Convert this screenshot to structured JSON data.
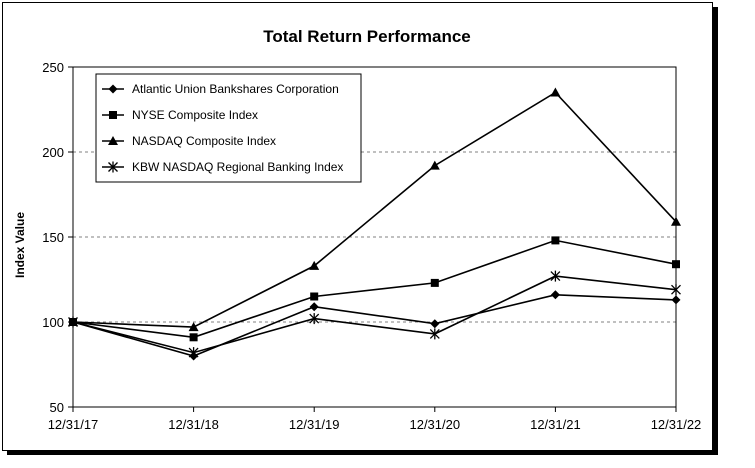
{
  "chart_data": {
    "type": "line",
    "title": "Total Return Performance",
    "xlabel": "",
    "ylabel": "Index Value",
    "categories": [
      "12/31/17",
      "12/31/18",
      "12/31/19",
      "12/31/20",
      "12/31/21",
      "12/31/22"
    ],
    "y_ticks": [
      "50",
      "100",
      "150",
      "200",
      "250"
    ],
    "ylim": [
      50,
      250
    ],
    "grid": "horizontal dashed at 150 and 200",
    "legend_position": "top-left",
    "series": [
      {
        "name": "Atlantic Union Bankshares Corporation",
        "marker": "diamond",
        "values": [
          100,
          80,
          109,
          99,
          116,
          113
        ]
      },
      {
        "name": "NYSE Composite Index",
        "marker": "square",
        "values": [
          100,
          91,
          115,
          123,
          148,
          134
        ]
      },
      {
        "name": "NASDAQ Composite Index",
        "marker": "triangle",
        "values": [
          100,
          97,
          133,
          192,
          235,
          159
        ]
      },
      {
        "name": "KBW NASDAQ Regional Banking Index",
        "marker": "asterisk",
        "values": [
          100,
          82,
          102,
          93,
          127,
          119
        ]
      }
    ]
  }
}
